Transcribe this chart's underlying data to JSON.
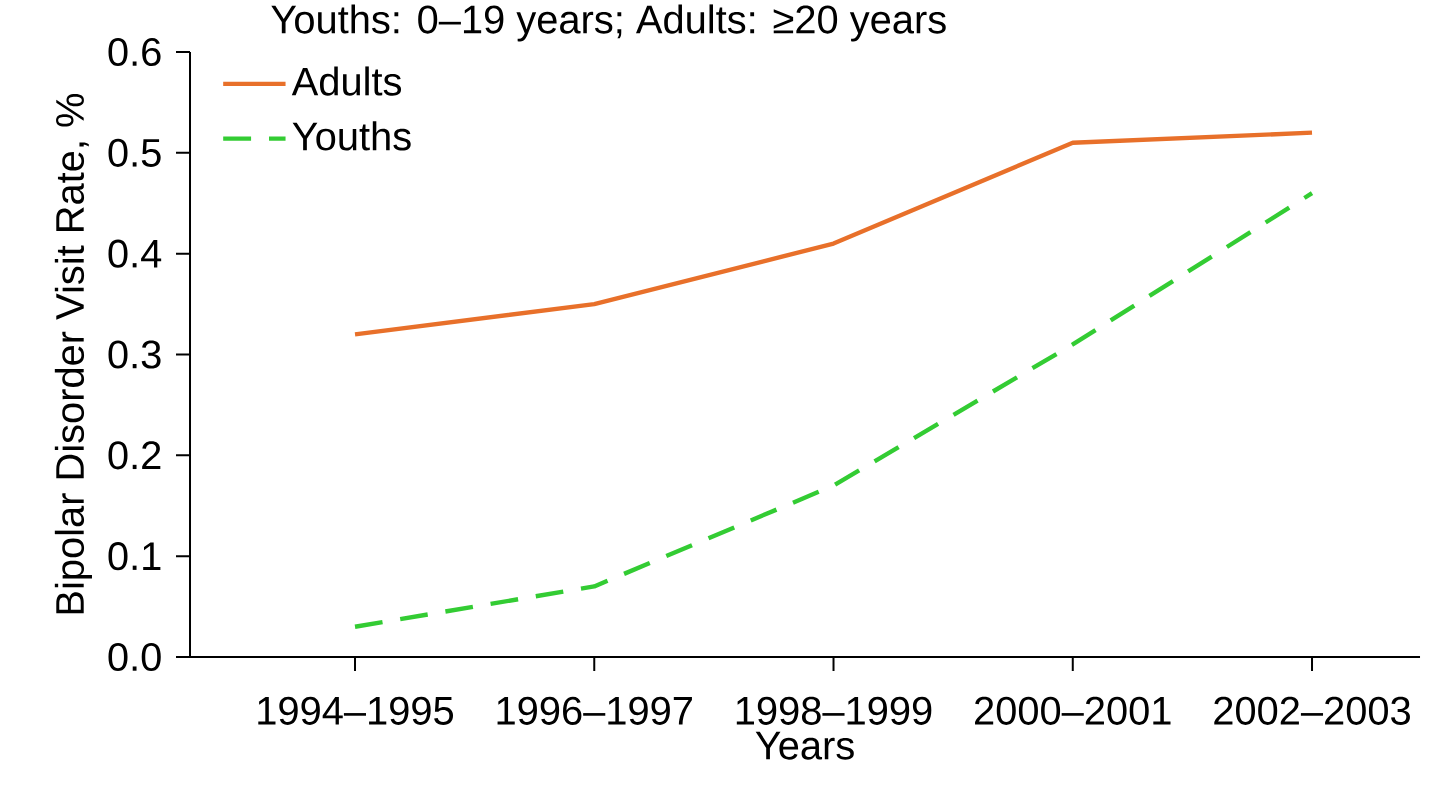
{
  "chart_data": {
    "type": "line",
    "subtitle": "Youths: 0–19 years; Adults: ≥20 years",
    "xlabel": "Years",
    "ylabel": "Bipolar Disorder Visit Rate, %",
    "categories": [
      "1994–1995",
      "1996–1997",
      "1998–1999",
      "2000–2001",
      "2002–2003"
    ],
    "series": [
      {
        "name": "Adults",
        "color": "#e8702a",
        "line_style": "solid",
        "values": [
          0.32,
          0.35,
          0.41,
          0.51,
          0.52
        ]
      },
      {
        "name": "Youths",
        "color": "#33cc33",
        "line_style": "dashed",
        "values": [
          0.03,
          0.07,
          0.17,
          0.31,
          0.46
        ]
      }
    ],
    "ylim": [
      0,
      0.6
    ],
    "yticks": [
      {
        "value": 0,
        "label": "0.0"
      },
      0.1,
      0.2,
      0.3,
      0.4,
      0.5,
      0.6
    ],
    "grid": false,
    "legend": "top left",
    "marker": "none"
  }
}
